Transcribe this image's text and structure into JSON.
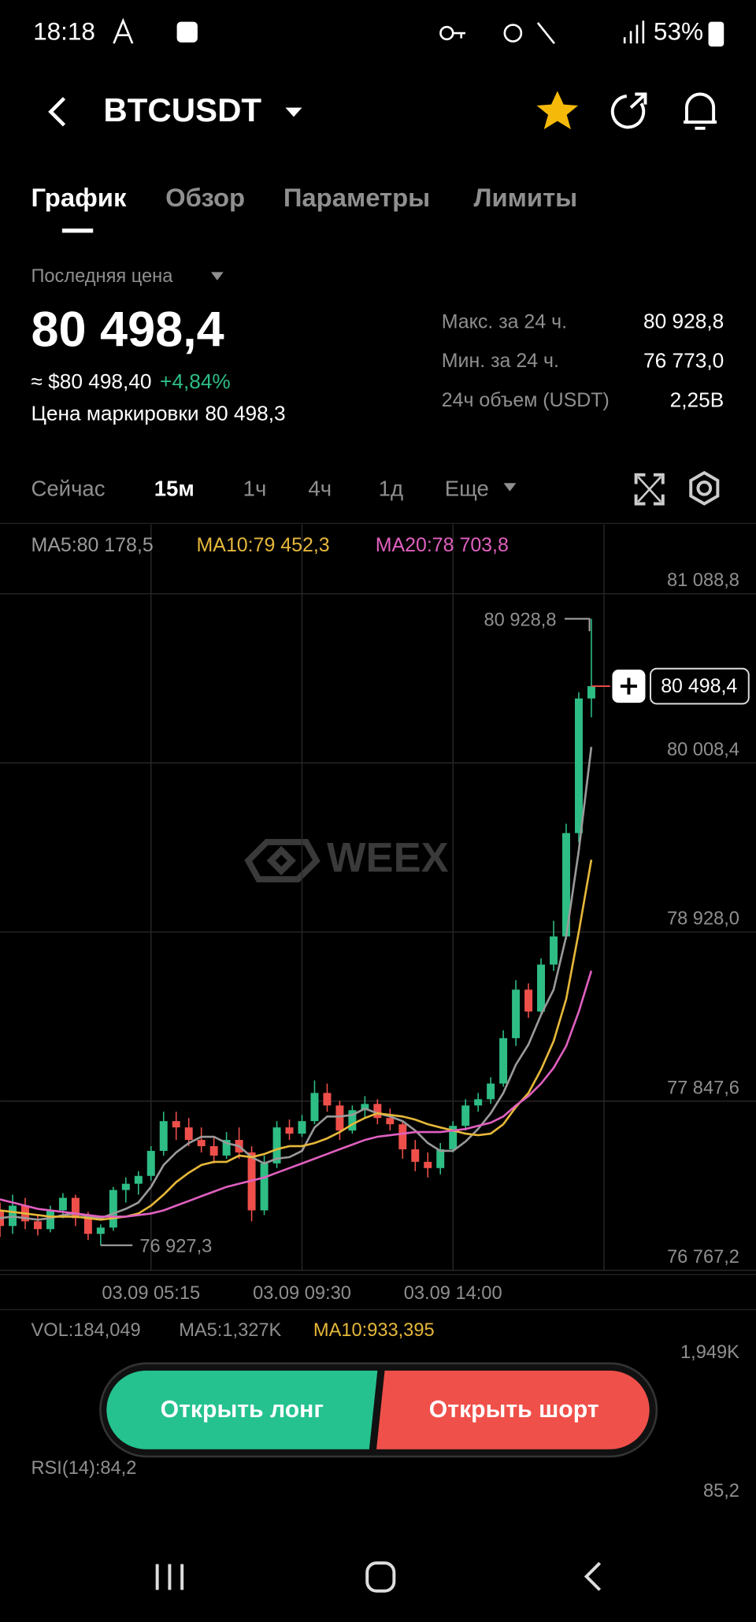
{
  "status_bar": {
    "time": "18:18",
    "battery": "53%"
  },
  "header": {
    "symbol": "BTCUSDT"
  },
  "tabs": [
    "График",
    "Обзор",
    "Параметры",
    "Лимиты"
  ],
  "price": {
    "label": "Последняя цена",
    "last": "80 498,4",
    "usd": "≈ $80 498,40",
    "change": "+4,84%",
    "mark_label": "Цена маркировки",
    "mark": "80 498,3"
  },
  "stats": [
    {
      "label": "Макс. за 24 ч.",
      "value": "80 928,8"
    },
    {
      "label": "Мин. за 24 ч.",
      "value": "76 773,0"
    },
    {
      "label": "24ч объем (USDT)",
      "value": "2,25B"
    }
  ],
  "intervals": [
    "Сейчас",
    "15м",
    "1ч",
    "4ч",
    "1д",
    "Еще"
  ],
  "chart_data": {
    "type": "candlestick",
    "watermark": "WEEX",
    "up_color": "#2ebd85",
    "down_color": "#ef4f4a",
    "xlim": [
      0,
      48
    ],
    "xticks": [
      {
        "value": 12,
        "label": "03.09 05:15"
      },
      {
        "value": 24,
        "label": "03.09 09:30"
      },
      {
        "value": 36,
        "label": "03.09 14:00"
      }
    ],
    "ylim": [
      76767.2,
      81531.5
    ],
    "yticks": [
      {
        "value": 81088.8,
        "label": "81 088,8"
      },
      {
        "value": 80008.4,
        "label": "80 008,4"
      },
      {
        "value": 78928.0,
        "label": "78 928,0"
      },
      {
        "value": 77847.6,
        "label": "77 847,6"
      },
      {
        "value": 76767.2,
        "label": "76 767,2"
      }
    ],
    "grid": true,
    "open": [
      77150,
      77050,
      77180,
      77080,
      77030,
      77150,
      77230,
      77100,
      77000,
      77040,
      77280,
      77320,
      77370,
      77530,
      77720,
      77680,
      77600,
      77560,
      77500,
      77600,
      77520,
      77150,
      77450,
      77680,
      77640,
      77720,
      77900,
      77820,
      77660,
      77790,
      77830,
      77740,
      77700,
      77540,
      77460,
      77420,
      77540,
      77690,
      77820,
      77860,
      77960,
      78250,
      78560,
      78420,
      78720,
      78900,
      79560,
      80420
    ],
    "high": [
      77200,
      77250,
      77230,
      77120,
      77180,
      77260,
      77250,
      77140,
      77060,
      77300,
      77360,
      77400,
      77560,
      77780,
      77780,
      77740,
      77680,
      77620,
      77650,
      77680,
      77560,
      77500,
      77720,
      77730,
      77760,
      77980,
      77960,
      77850,
      77820,
      77880,
      77860,
      77800,
      77720,
      77600,
      77520,
      77580,
      77720,
      77860,
      77900,
      78000,
      78300,
      78620,
      78600,
      78760,
      79000,
      79620,
      80460,
      80928.8
    ],
    "low": [
      76980,
      77000,
      77030,
      76990,
      77010,
      77100,
      77050,
      76960,
      76927.3,
      77020,
      77200,
      77250,
      77340,
      77500,
      77600,
      77560,
      77520,
      77450,
      77480,
      77480,
      77080,
      77120,
      77420,
      77600,
      77620,
      77700,
      77780,
      77600,
      77640,
      77740,
      77700,
      77660,
      77480,
      77400,
      77360,
      77380,
      77520,
      77660,
      77780,
      77830,
      77940,
      78200,
      78380,
      78400,
      78680,
      78880,
      79500,
      80300
    ],
    "close": [
      77050,
      77180,
      77080,
      77030,
      77150,
      77230,
      77100,
      77000,
      77040,
      77280,
      77320,
      77370,
      77530,
      77720,
      77680,
      77600,
      77560,
      77500,
      77600,
      77520,
      77150,
      77450,
      77680,
      77640,
      77720,
      77900,
      77820,
      77660,
      77790,
      77830,
      77740,
      77700,
      77540,
      77460,
      77420,
      77540,
      77690,
      77820,
      77860,
      77960,
      78250,
      78560,
      78420,
      78720,
      78900,
      79560,
      80420,
      80498.4
    ],
    "ma": [
      {
        "label": "MA5:80 178,5",
        "color": "#9a9a9a",
        "values": [
          77100,
          77110,
          77100,
          77090,
          77100,
          77120,
          77130,
          77110,
          77100,
          77130,
          77160,
          77200,
          77300,
          77440,
          77520,
          77580,
          77620,
          77620,
          77580,
          77560,
          77490,
          77450,
          77480,
          77490,
          77530,
          77680,
          77750,
          77750,
          77760,
          77800,
          77770,
          77750,
          77720,
          77660,
          77580,
          77530,
          77530,
          77590,
          77670,
          77770,
          77900,
          78080,
          78210,
          78400,
          78560,
          78900,
          79450,
          80110
        ]
      },
      {
        "label": "MA10:79 452,3",
        "color": "#e6b83a",
        "values": [
          77150,
          77140,
          77130,
          77120,
          77110,
          77110,
          77110,
          77100,
          77090,
          77100,
          77110,
          77130,
          77180,
          77250,
          77330,
          77390,
          77440,
          77460,
          77460,
          77500,
          77490,
          77510,
          77540,
          77560,
          77560,
          77580,
          77610,
          77650,
          77700,
          77740,
          77770,
          77760,
          77750,
          77730,
          77700,
          77680,
          77660,
          77640,
          77630,
          77640,
          77700,
          77810,
          77900,
          78050,
          78230,
          78500,
          78930,
          79390
        ]
      },
      {
        "label": "MA20:78 703,8",
        "color": "#e060c0",
        "values": [
          77220,
          77200,
          77180,
          77160,
          77150,
          77140,
          77130,
          77120,
          77110,
          77110,
          77110,
          77120,
          77130,
          77150,
          77180,
          77210,
          77240,
          77270,
          77300,
          77320,
          77340,
          77360,
          77390,
          77420,
          77450,
          77480,
          77510,
          77540,
          77570,
          77600,
          77620,
          77630,
          77640,
          77650,
          77650,
          77650,
          77660,
          77670,
          77690,
          77710,
          77750,
          77820,
          77880,
          77960,
          78060,
          78200,
          78420,
          78680
        ]
      }
    ],
    "annotations": [
      {
        "value": 80928.8,
        "label": "80 928,8"
      },
      {
        "value": 76927.3,
        "label": "76 927,3"
      }
    ],
    "last_price": {
      "value": 80498.4,
      "label": "80 498,4"
    }
  },
  "volume": {
    "label": "VOL:184,049",
    "ma5": "MA5:1,327K",
    "ma10": "MA10:933,395",
    "max": "1,949K"
  },
  "rsi": {
    "label": "RSI(14):84,2",
    "max": "85,2"
  },
  "buttons": {
    "long": "Открыть лонг",
    "short": "Открыть шорт"
  }
}
